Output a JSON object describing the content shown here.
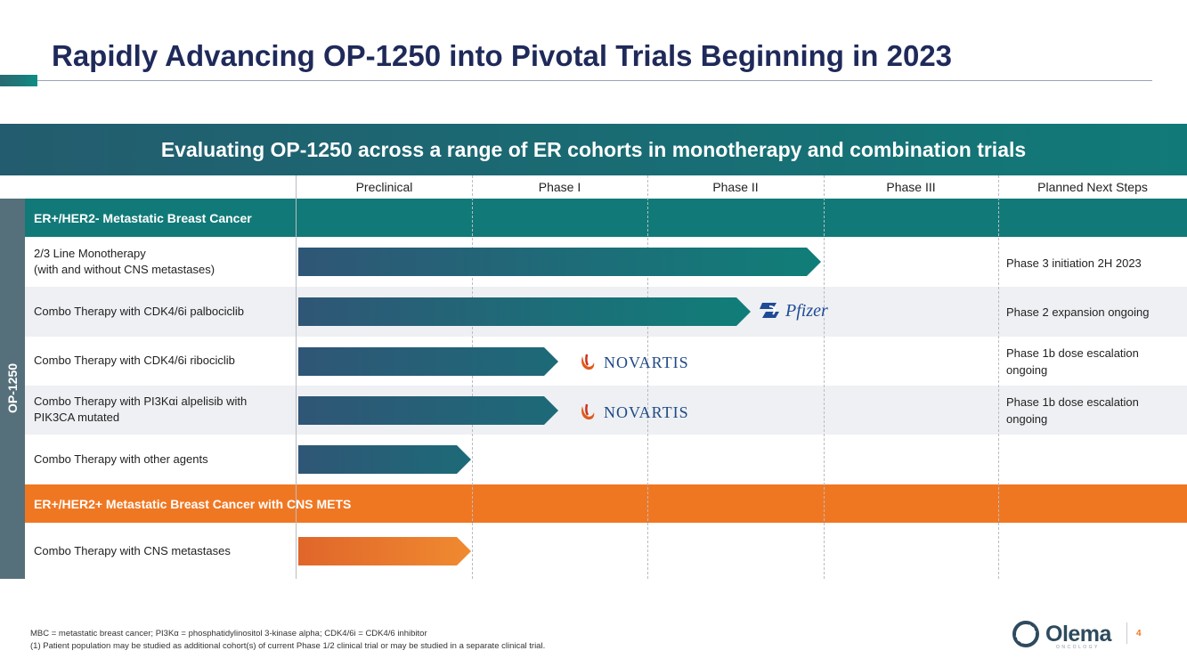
{
  "slide": {
    "title": "Rapidly Advancing OP-1250 into Pivotal Trials Beginning in 2023",
    "page_number": "4"
  },
  "banner": {
    "text": "Evaluating OP-1250 across a range of ER cohorts in monotherapy and combination trials"
  },
  "phases": [
    "Preclinical",
    "Phase I",
    "Phase II",
    "Phase III",
    "Planned Next Steps"
  ],
  "sidebar": {
    "label": "OP-1250"
  },
  "categories": [
    {
      "label": "ER+/HER2- Metastatic Breast Cancer",
      "color": "#117a78"
    },
    {
      "label": "ER+/HER2+ Metastatic Breast Cancer with CNS METS",
      "color": "#f07722"
    }
  ],
  "rows": [
    {
      "line1": "2/3 Line Monotherapy",
      "line2": "(with and without CNS metastases)",
      "progress_phase": 3.0,
      "partner": "",
      "next1": "Phase 3 initiation 2H 2023",
      "next2": ""
    },
    {
      "line1": "Combo Therapy with CDK4/6i palbociclib",
      "line2": "",
      "progress_phase": 2.6,
      "partner": "Pfizer",
      "next1": "Phase 2 expansion ongoing",
      "next2": ""
    },
    {
      "line1": "Combo Therapy with CDK4/6i ribociclib",
      "line2": "",
      "progress_phase": 1.5,
      "partner": "NOVARTIS",
      "next1": "Phase 1b dose escalation",
      "next2": "ongoing"
    },
    {
      "line1": "Combo Therapy with PI3Kαi alpelisib with",
      "line2": "PIK3CA mutated",
      "progress_phase": 1.5,
      "partner": "NOVARTIS",
      "next1": "Phase 1b dose escalation",
      "next2": "ongoing"
    },
    {
      "line1": "Combo Therapy with other agents",
      "line2": "",
      "progress_phase": 1.0,
      "partner": "",
      "next1": "",
      "next2": ""
    },
    {
      "line1": "Combo Therapy with CNS metastases",
      "line2": "",
      "progress_phase": 1.0,
      "partner": "",
      "next1": "",
      "next2": ""
    }
  ],
  "footnotes": {
    "line1": "MBC = metastatic breast cancer; PI3Kα = phosphatidylinositol 3-kinase alpha; CDK4/6i = CDK4/6 inhibitor",
    "line2": "(1) Patient population may be studied as additional cohort(s) of current Phase 1/2 clinical trial or may be studied in a separate clinical trial."
  },
  "company": {
    "name": "Olema",
    "tagline": "ONCOLOGY"
  },
  "colors": {
    "navy": "#1f2a5a",
    "teal": "#117a78",
    "orange": "#f07722",
    "side": "#55707a"
  }
}
